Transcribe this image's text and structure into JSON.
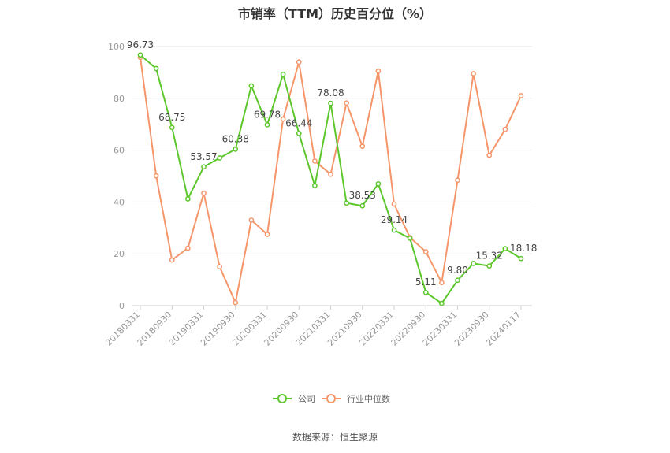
{
  "title": "市销率（TTM）历史百分位（%）",
  "source": "数据来源：恒生聚源",
  "colors": {
    "company": "#5cc72a",
    "industry": "#f5956a",
    "grid": "#e6e6e6",
    "axis": "#999999"
  },
  "chart_data": {
    "type": "line",
    "ylim": [
      0,
      100
    ],
    "yticks": [
      "0",
      "20",
      "40",
      "60",
      "80",
      "100"
    ],
    "x_tick_labels": [
      "20180331",
      "20180930",
      "20190331",
      "20190930",
      "20200331",
      "20200930",
      "20210331",
      "20210930",
      "20220331",
      "20220930",
      "20230331",
      "20230930",
      "20240117"
    ],
    "grid": true,
    "legend_position": "bottom",
    "series": [
      {
        "name": "公司",
        "values": [
          96.73,
          91.5,
          68.75,
          41.2,
          53.57,
          57.0,
          60.38,
          84.8,
          69.78,
          89.3,
          66.44,
          46.3,
          78.08,
          39.6,
          38.53,
          47.0,
          29.14,
          26.0,
          5.11,
          0.9,
          9.8,
          16.3,
          15.32,
          22.0,
          18.18
        ]
      },
      {
        "name": "行业中位数",
        "values": [
          95.8,
          50.1,
          17.6,
          22.2,
          43.4,
          15.0,
          1.2,
          33.0,
          27.5,
          72.0,
          94.0,
          55.8,
          50.7,
          78.2,
          61.5,
          90.5,
          39.2,
          26.3,
          20.8,
          8.9,
          48.4,
          89.5,
          58.0,
          68.0,
          81.0
        ]
      }
    ],
    "point_labels": [
      {
        "index": 0,
        "text": "96.73"
      },
      {
        "index": 2,
        "text": "68.75"
      },
      {
        "index": 4,
        "text": "53.57"
      },
      {
        "index": 6,
        "text": "60.38"
      },
      {
        "index": 8,
        "text": "69.78"
      },
      {
        "index": 10,
        "text": "66.44"
      },
      {
        "index": 12,
        "text": "78.08"
      },
      {
        "index": 14,
        "text": "38.53"
      },
      {
        "index": 16,
        "text": "29.14"
      },
      {
        "index": 18,
        "text": "5.11"
      },
      {
        "index": 20,
        "text": "9.80"
      },
      {
        "index": 22,
        "text": "15.32"
      },
      {
        "index": 24,
        "text": "18.18"
      }
    ]
  }
}
